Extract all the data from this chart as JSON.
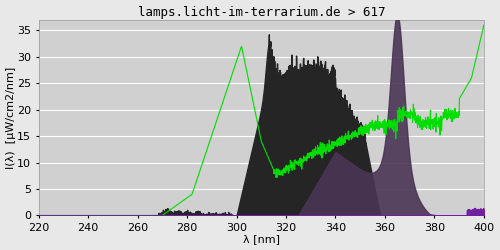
{
  "title": "lamps.licht-im-terrarium.de > 617",
  "xlabel": "λ [nm]",
  "ylabel": "I(λ)  [µW/cm2/nm]",
  "xlim": [
    220,
    400
  ],
  "ylim": [
    0,
    37
  ],
  "yticks": [
    0,
    5,
    10,
    15,
    20,
    25,
    30,
    35
  ],
  "xticks": [
    220,
    240,
    260,
    280,
    300,
    320,
    340,
    360,
    380,
    400
  ],
  "bg_color": "#e8e8e8",
  "plot_bg_color": "#d0d0d0",
  "grid_color": "#ffffff",
  "title_fontsize": 9,
  "axis_fontsize": 8,
  "tick_fontsize": 8,
  "spec1_color": "#252525",
  "spec2_color": "#4a3555",
  "spec_purple_color": "#7020a0",
  "green_color": "#00dd00"
}
